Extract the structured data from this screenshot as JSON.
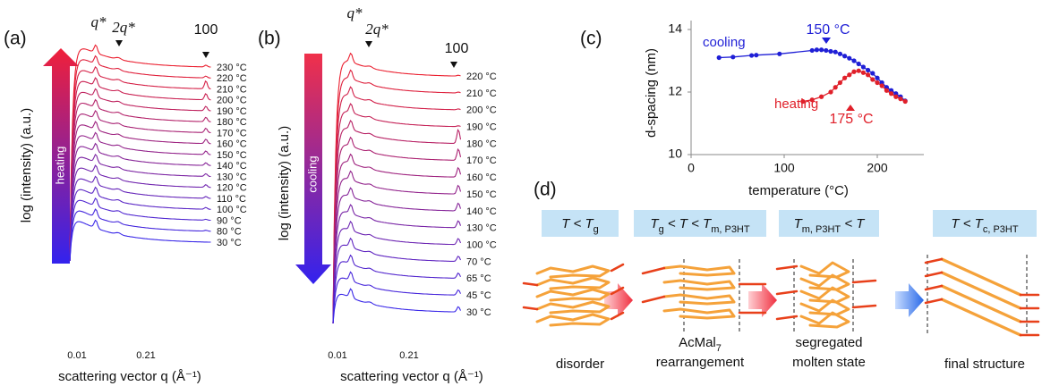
{
  "panels": {
    "a": "(a)",
    "b": "(b)",
    "c": "(c)",
    "d": "(d)"
  },
  "heating_scan": {
    "arrow_label": "heating",
    "y_label": "log (intensity) (a.u.)",
    "x_label": "scattering vector q (Å⁻¹)",
    "xticks": [
      "0.01",
      "0.21"
    ],
    "peaks": [
      "q*",
      "2q*",
      "100"
    ],
    "temperatures": [
      "230 °C",
      "220 °C",
      "210 °C",
      "200 °C",
      "190 °C",
      "180 °C",
      "170 °C",
      "160 °C",
      "150 °C",
      "140 °C",
      "130 °C",
      "120 °C",
      "110 °C",
      "100 °C",
      "90 °C",
      "80 °C",
      "30 °C"
    ]
  },
  "cooling_scan": {
    "arrow_label": "cooling",
    "y_label": "log (intensity) (a.u.)",
    "x_label": "scattering vector q (Å⁻¹)",
    "xticks": [
      "0.01",
      "0.21"
    ],
    "peaks": [
      "q*",
      "2q*",
      "100"
    ],
    "temperatures": [
      "220 °C",
      "210 °C",
      "200 °C",
      "190 °C",
      "180 °C",
      "170 °C",
      "160 °C",
      "150 °C",
      "140 °C",
      "130 °C",
      "100 °C",
      "70 °C",
      "65 °C",
      "45 °C",
      "30 °C"
    ]
  },
  "chart_data": {
    "type": "line",
    "x_label": "temperature (°C)",
    "y_label": "d-spacing (nm)",
    "xlim": [
      0,
      250
    ],
    "xticks": [
      0,
      100,
      200
    ],
    "ylim": [
      10,
      14
    ],
    "yticks": [
      10,
      12,
      14
    ],
    "annotations": [
      "150 °C",
      "175 °C"
    ],
    "series": [
      {
        "name": "cooling",
        "color": "#1f1fd6",
        "x": [
          30,
          45,
          65,
          70,
          95,
          130,
          135,
          140,
          145,
          150,
          155,
          160,
          165,
          170,
          175,
          180,
          185,
          190,
          195,
          200,
          205,
          210,
          215,
          220,
          225,
          230
        ],
        "values": [
          13.1,
          13.12,
          13.17,
          13.18,
          13.22,
          13.33,
          13.35,
          13.35,
          13.33,
          13.3,
          13.28,
          13.22,
          13.15,
          13.08,
          13.0,
          12.9,
          12.8,
          12.7,
          12.6,
          12.45,
          12.3,
          12.15,
          12.05,
          11.95,
          11.85,
          11.72
        ]
      },
      {
        "name": "heating",
        "color": "#e0202a",
        "x": [
          120,
          130,
          140,
          150,
          155,
          160,
          165,
          170,
          175,
          180,
          185,
          190,
          195,
          200,
          205,
          210,
          215,
          220,
          225,
          230
        ],
        "values": [
          11.7,
          11.75,
          11.85,
          12.0,
          12.15,
          12.3,
          12.45,
          12.55,
          12.65,
          12.68,
          12.62,
          12.55,
          12.4,
          12.3,
          12.2,
          12.05,
          11.95,
          11.85,
          11.78,
          11.7
        ]
      }
    ]
  },
  "schematic": {
    "states": [
      {
        "condition": [
          [
            "T < T",
            "g"
          ]
        ],
        "caption": [
          [
            [
              "disorder"
            ]
          ]
        ]
      },
      {
        "condition": [
          [
            "T",
            "g"
          ],
          [
            " < T < T",
            "m, P3HT"
          ]
        ],
        "caption": [
          [
            [
              "AcMal",
              "7"
            ]
          ],
          [
            [
              "rearrangement"
            ]
          ]
        ]
      },
      {
        "condition": [
          [
            "T",
            "m, P3HT"
          ],
          [
            " < T"
          ]
        ],
        "caption": [
          [
            [
              "segregated"
            ]
          ],
          [
            [
              "molten state"
            ]
          ]
        ]
      },
      {
        "condition": [
          [
            "T < T",
            "c, P3HT"
          ]
        ],
        "caption": [
          [
            [
              "final structure"
            ]
          ]
        ]
      }
    ]
  }
}
